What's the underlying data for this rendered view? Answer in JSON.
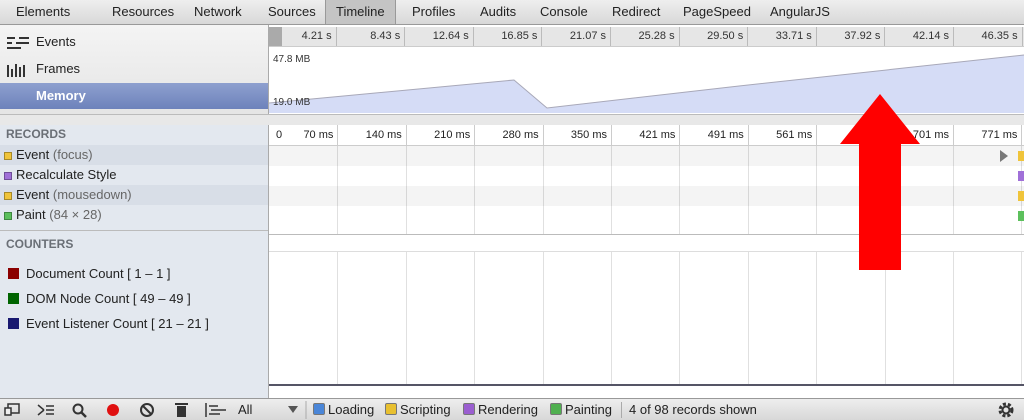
{
  "tabs": [
    "Elements",
    "Resources",
    "Network",
    "Sources",
    "Timeline",
    "Profiles",
    "Audits",
    "Console",
    "Redirect",
    "PageSpeed",
    "AngularJS"
  ],
  "overview": {
    "modes": [
      "Events",
      "Frames",
      "Memory"
    ],
    "ticks": [
      "4.21 s",
      "8.43 s",
      "12.64 s",
      "16.85 s",
      "21.07 s",
      "25.28 s",
      "29.50 s",
      "33.71 s",
      "37.92 s",
      "42.14 s",
      "46.35 s"
    ],
    "memory_max": "47.8 MB",
    "memory_min": "19.0 MB"
  },
  "records": {
    "heading": "RECORDS",
    "items": [
      {
        "name": "Event",
        "detail": "(focus)",
        "color": "#f0c43a"
      },
      {
        "name": "Recalculate Style",
        "detail": null,
        "color": "#a070d8"
      },
      {
        "name": "Event",
        "detail": "(mousedown)",
        "color": "#f0c43a"
      },
      {
        "name": "Paint",
        "detail": "(84 × 28)",
        "color": "#5cc05c"
      }
    ],
    "ruler": [
      "0",
      "70 ms",
      "140 ms",
      "210 ms",
      "280 ms",
      "350 ms",
      "421 ms",
      "491 ms",
      "561 ms",
      null,
      "701 ms",
      "771 ms"
    ]
  },
  "counters": {
    "heading": "COUNTERS",
    "items": [
      {
        "label": "Document Count [ 1 – 1 ]",
        "color": "#8b0000"
      },
      {
        "label": "DOM Node Count [ 49 – 49 ]",
        "color": "#006400"
      },
      {
        "label": "Event Listener Count [ 21 – 21 ]",
        "color": "#191970"
      }
    ]
  },
  "status_bar": {
    "filter": "All",
    "categories": [
      {
        "label": "Loading",
        "color": "#4a86d8"
      },
      {
        "label": "Scripting",
        "color": "#e8c030"
      },
      {
        "label": "Rendering",
        "color": "#9a5ed0"
      },
      {
        "label": "Painting",
        "color": "#50b050"
      }
    ],
    "summary": "4 of 98 records shown"
  }
}
